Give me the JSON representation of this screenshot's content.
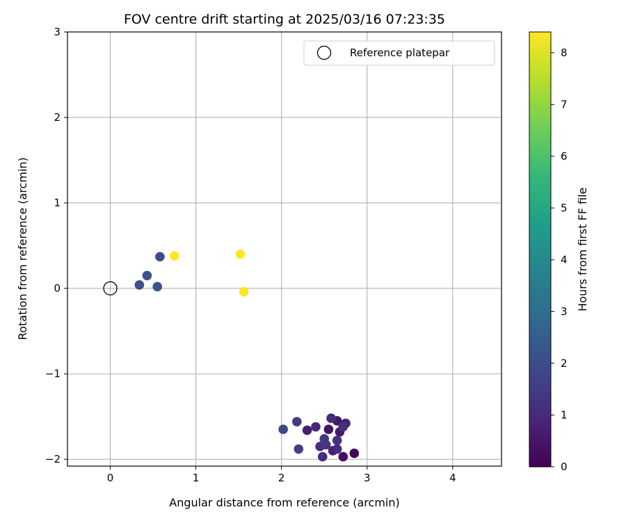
{
  "chart_data": {
    "type": "scatter",
    "title": "FOV centre drift starting at 2025/03/16 07:23:35",
    "xlabel": "Angular distance from reference (arcmin)",
    "ylabel": "Rotation from reference (arcmin)",
    "xlim": [
      -0.5,
      4.57
    ],
    "ylim": [
      -2.08,
      3
    ],
    "xticks": [
      0,
      1,
      2,
      3,
      4
    ],
    "yticks": [
      -2,
      -1,
      0,
      1,
      2,
      3
    ],
    "xtick_labels": [
      "0",
      "1",
      "2",
      "3",
      "4"
    ],
    "ytick_labels": [
      "−2",
      "−1",
      "0",
      "1",
      "2",
      "3"
    ],
    "grid": true,
    "legend": {
      "placement": "top-right",
      "entries": [
        "Reference platepar"
      ]
    },
    "colorbar": {
      "label": "Hours from first FF file",
      "range": [
        0,
        8.4
      ],
      "ticks": [
        0,
        1,
        2,
        3,
        4,
        5,
        6,
        7,
        8
      ],
      "tick_labels": [
        "0",
        "1",
        "2",
        "3",
        "4",
        "5",
        "6",
        "7",
        "8"
      ],
      "colormap": "viridis"
    },
    "reference_point": {
      "x": 0,
      "y": 0,
      "marker": "open-circle",
      "edge_color": "#000000"
    },
    "points": [
      {
        "x": 2.85,
        "y": -1.93,
        "t": 0.1
      },
      {
        "x": 2.72,
        "y": -1.97,
        "t": 0.3
      },
      {
        "x": 2.55,
        "y": -1.65,
        "t": 0.4
      },
      {
        "x": 2.65,
        "y": -1.55,
        "t": 0.5
      },
      {
        "x": 2.68,
        "y": -1.68,
        "t": 0.6
      },
      {
        "x": 2.3,
        "y": -1.66,
        "t": 0.7
      },
      {
        "x": 2.6,
        "y": -1.9,
        "t": 0.8
      },
      {
        "x": 2.75,
        "y": -1.58,
        "t": 0.8
      },
      {
        "x": 2.4,
        "y": -1.62,
        "t": 0.9
      },
      {
        "x": 2.65,
        "y": -1.88,
        "t": 1.0
      },
      {
        "x": 2.58,
        "y": -1.52,
        "t": 1.0
      },
      {
        "x": 2.72,
        "y": -1.62,
        "t": 1.1
      },
      {
        "x": 2.48,
        "y": -1.97,
        "t": 1.1
      },
      {
        "x": 2.65,
        "y": -1.78,
        "t": 1.2
      },
      {
        "x": 2.45,
        "y": -1.85,
        "t": 1.2
      },
      {
        "x": 2.52,
        "y": -1.83,
        "t": 1.3
      },
      {
        "x": 2.5,
        "y": -1.76,
        "t": 1.4
      },
      {
        "x": 2.18,
        "y": -1.56,
        "t": 1.5
      },
      {
        "x": 2.2,
        "y": -1.88,
        "t": 1.6
      },
      {
        "x": 2.02,
        "y": -1.65,
        "t": 1.8
      },
      {
        "x": 0.58,
        "y": 0.37,
        "t": 2.0
      },
      {
        "x": 0.43,
        "y": 0.15,
        "t": 2.1
      },
      {
        "x": 0.34,
        "y": 0.04,
        "t": 2.1
      },
      {
        "x": 0.55,
        "y": 0.02,
        "t": 2.2
      },
      {
        "x": 0.75,
        "y": 0.38,
        "t": 8.4
      },
      {
        "x": 1.52,
        "y": 0.4,
        "t": 8.4
      },
      {
        "x": 1.56,
        "y": -0.04,
        "t": 8.4
      }
    ]
  }
}
